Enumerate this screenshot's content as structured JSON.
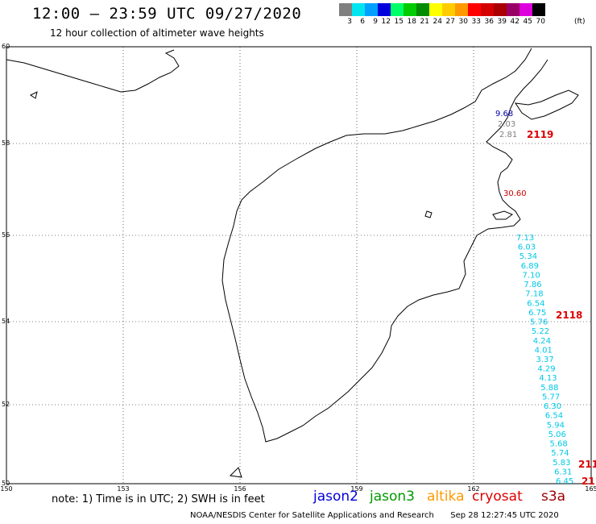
{
  "header": {
    "title": "12:00 – 23:59 UTC 09/27/2020",
    "subtitle": "12 hour collection of altimeter wave heights"
  },
  "colorbar": {
    "unit": "(ft)",
    "cells": [
      {
        "color": "#808080",
        "label": "3"
      },
      {
        "color": "#00e5ee",
        "label": "6"
      },
      {
        "color": "#00a0ff",
        "label": "9"
      },
      {
        "color": "#0000dd",
        "label": "12"
      },
      {
        "color": "#00ff66",
        "label": "15"
      },
      {
        "color": "#00cc00",
        "label": "18"
      },
      {
        "color": "#008c00",
        "label": "21"
      },
      {
        "color": "#ffff00",
        "label": "24"
      },
      {
        "color": "#ffcc00",
        "label": "27"
      },
      {
        "color": "#ff9900",
        "label": "30"
      },
      {
        "color": "#ff0000",
        "label": "33"
      },
      {
        "color": "#d40000",
        "label": "36"
      },
      {
        "color": "#aa0000",
        "label": "39"
      },
      {
        "color": "#990066",
        "label": "42"
      },
      {
        "color": "#dd00dd",
        "label": "45"
      },
      {
        "color": "#000000",
        "label": "70"
      }
    ]
  },
  "map": {
    "lon_ticks": [
      "150",
      "153",
      "156",
      "159",
      "162",
      "165"
    ],
    "lat_ticks": [
      "60",
      "58",
      "56",
      "54",
      "52",
      "50"
    ]
  },
  "track_north": [
    {
      "text": "9.68",
      "color": "#0000aa"
    },
    {
      "text": "2.03",
      "color": "#808080"
    },
    {
      "text": "2.81",
      "color": "#808080"
    }
  ],
  "track_mid": [
    {
      "text": "30.60",
      "color": "#cc0000"
    }
  ],
  "track_east": [
    "7.13",
    "6.03",
    "5.34",
    "6.89",
    "7.10",
    "7.86",
    "7.18",
    "6.54",
    "6.75",
    "5.76",
    "5.22",
    "4.24",
    "4.01",
    "3.37",
    "4.29",
    "4.13",
    "5.88",
    "5.77",
    "6.30",
    "6.54",
    "5.94",
    "5.06",
    "5.68",
    "5.74",
    "5.83",
    "6.31",
    "6.45"
  ],
  "pass_labels": [
    {
      "text": "2119",
      "color": "#dd0000"
    },
    {
      "text": "2118",
      "color": "#dd0000"
    },
    {
      "text": "211",
      "color": "#dd0000"
    },
    {
      "text": "21",
      "color": "#dd0000"
    }
  ],
  "east_color": "#00c8e6",
  "footer": {
    "note": "note: 1) Time is in UTC; 2) SWH is in feet",
    "legend": [
      {
        "label": "jason2",
        "color": "#0000dd"
      },
      {
        "label": "jason3",
        "color": "#009900"
      },
      {
        "label": "altika",
        "color": "#ff9900"
      },
      {
        "label": "cryosat",
        "color": "#dd0000"
      },
      {
        "label": "s3a",
        "color": "#990000"
      }
    ],
    "credit": "NOAA/NESDIS Center for Satellite Applications and Research",
    "timestamp": "Sep 28 12:27:45 UTC 2020"
  }
}
